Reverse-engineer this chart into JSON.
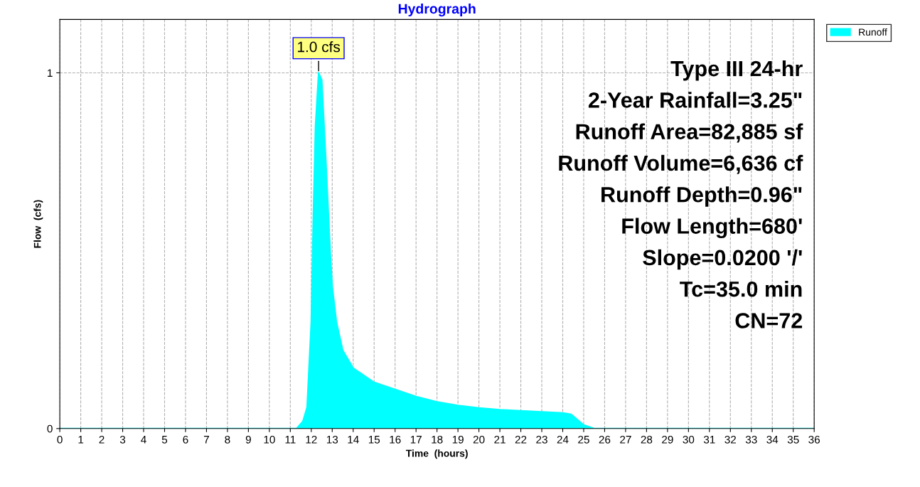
{
  "chart_data": {
    "type": "area",
    "title": "Hydrograph",
    "xlabel": "Time  (hours)",
    "ylabel": "Flow  (cfs)",
    "x": [
      0,
      11.3,
      11.6,
      11.8,
      12.0,
      12.1,
      12.2,
      12.35,
      12.5,
      12.7,
      12.9,
      13.0,
      13.2,
      13.5,
      14.0,
      14.5,
      15,
      16,
      17,
      18,
      19,
      20,
      21,
      22,
      23,
      24,
      24.4,
      25,
      25.5,
      36
    ],
    "series": [
      {
        "name": "Runoff",
        "color": "#00ffff",
        "values": [
          0,
          0,
          0.02,
          0.06,
          0.3,
          0.6,
          0.85,
          1.0,
          0.98,
          0.75,
          0.5,
          0.4,
          0.3,
          0.22,
          0.17,
          0.15,
          0.13,
          0.11,
          0.09,
          0.075,
          0.065,
          0.058,
          0.053,
          0.05,
          0.047,
          0.044,
          0.04,
          0.01,
          0,
          0
        ]
      }
    ],
    "xlim": [
      0,
      36
    ],
    "xticks": [
      0,
      1,
      2,
      3,
      4,
      5,
      6,
      7,
      8,
      9,
      10,
      11,
      12,
      13,
      14,
      15,
      16,
      17,
      18,
      19,
      20,
      21,
      22,
      23,
      24,
      25,
      26,
      27,
      28,
      29,
      30,
      31,
      32,
      33,
      34,
      35,
      36
    ],
    "ylim": [
      0,
      1.15
    ],
    "yticks": [
      0,
      1
    ],
    "grid": true,
    "legend": "top right",
    "annotations": [
      {
        "text": "1.0 cfs",
        "x": 12.35,
        "y": 1.0
      },
      "Type III 24-hr",
      "2-Year Rainfall=3.25\"",
      "Runoff Area=82,885 sf",
      "Runoff Volume=6,636 cf",
      "Runoff Depth=0.96\"",
      "Flow Length=680'",
      "Slope=0.0200 '/'",
      "Tc=35.0 min",
      "CN=72"
    ]
  }
}
